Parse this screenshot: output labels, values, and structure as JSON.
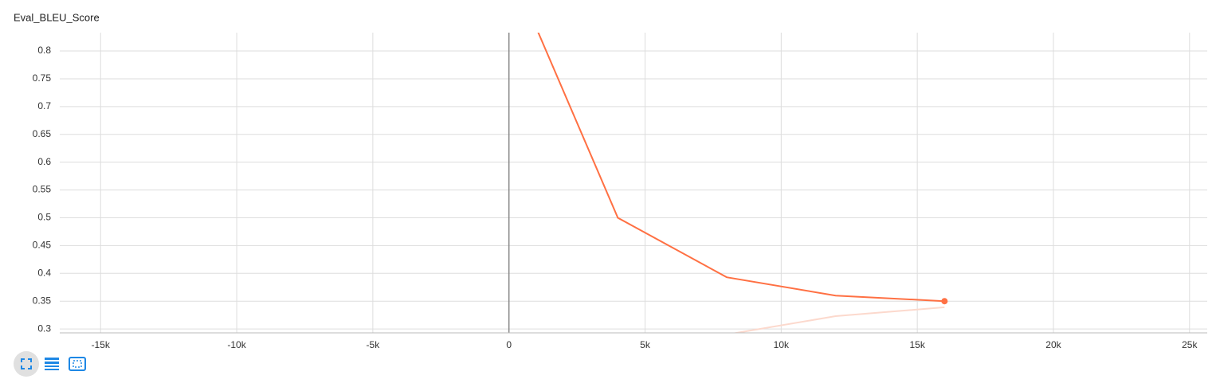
{
  "chart_data": {
    "type": "line",
    "title": "Eval_BLEU_Score",
    "xlim": [
      -16500,
      25650
    ],
    "ylim": [
      0.293,
      0.833
    ],
    "xticks": [
      {
        "value": -15000,
        "label": "-15k"
      },
      {
        "value": -10000,
        "label": "-10k"
      },
      {
        "value": -5000,
        "label": "-5k"
      },
      0,
      {
        "value": 5000,
        "label": "5k"
      },
      {
        "value": 10000,
        "label": "10k"
      },
      {
        "value": 15000,
        "label": "15k"
      },
      {
        "value": 20000,
        "label": "20k"
      },
      {
        "value": 25000,
        "label": "25k"
      }
    ],
    "yticks": [
      0.3,
      0.35,
      0.4,
      0.45,
      0.5,
      0.55,
      0.6,
      0.65,
      0.7,
      0.75,
      0.8
    ],
    "grid": true,
    "series": [
      {
        "color": "#fcd9cd",
        "x": [
          8000,
          12000,
          16000
        ],
        "values": [
          0.29,
          0.323,
          0.339
        ]
      },
      {
        "color": "#ff7043",
        "x": [
          0,
          4000,
          8000,
          12000,
          16000
        ],
        "values": [
          0.956,
          0.5,
          0.393,
          0.36,
          0.35
        ]
      }
    ]
  }
}
